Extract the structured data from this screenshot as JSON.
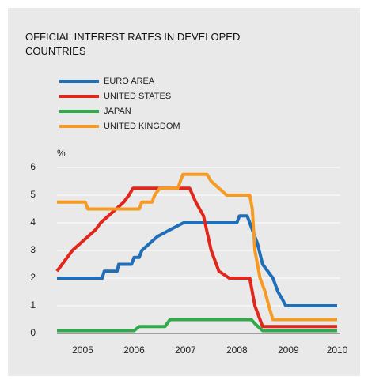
{
  "chart_data": {
    "type": "line",
    "title": "OFFICIAL INTEREST RATES IN DEVELOPED COUNTRIES",
    "y_label": "%",
    "ylim": [
      0,
      6
    ],
    "yticks": [
      0,
      1,
      2,
      3,
      4,
      5,
      6
    ],
    "grid": true,
    "xlim": [
      2005.0,
      2010.45
    ],
    "xticks": [
      {
        "value": 2005.5,
        "label": "2005"
      },
      {
        "value": 2006.5,
        "label": "2006"
      },
      {
        "value": 2007.5,
        "label": "2007"
      },
      {
        "value": 2008.5,
        "label": "2008"
      },
      {
        "value": 2009.5,
        "label": "2009"
      },
      {
        "value": 2010.45,
        "label": "2010"
      }
    ],
    "series": [
      {
        "name": "EURO AREA",
        "color": "#1f6fb8",
        "x": [
          2005.0,
          2005.88,
          2005.92,
          2006.17,
          2006.2,
          2006.45,
          2006.5,
          2006.6,
          2006.65,
          2006.8,
          2006.95,
          2007.2,
          2007.46,
          2008.5,
          2008.55,
          2008.7,
          2008.8,
          2008.9,
          2009.0,
          2009.2,
          2009.3,
          2009.38,
          2009.45,
          2010.45
        ],
        "values": [
          2,
          2,
          2.25,
          2.25,
          2.5,
          2.5,
          2.75,
          2.75,
          3,
          3.25,
          3.5,
          3.75,
          4,
          4,
          4.25,
          4.25,
          3.75,
          3.25,
          2.5,
          2,
          1.5,
          1.25,
          1,
          1
        ]
      },
      {
        "name": "UNITED STATES",
        "color": "#e1261c",
        "x": [
          2005.0,
          2005.1,
          2005.2,
          2005.3,
          2005.45,
          2005.6,
          2005.75,
          2005.85,
          2006.0,
          2006.15,
          2006.3,
          2006.4,
          2006.48,
          2007.58,
          2007.7,
          2007.85,
          2008.0,
          2008.15,
          2008.35,
          2008.75,
          2008.85,
          2009.0,
          2010.45
        ],
        "values": [
          2.25,
          2.5,
          2.75,
          3,
          3.25,
          3.5,
          3.75,
          4,
          4.25,
          4.5,
          4.75,
          5,
          5.25,
          5.25,
          4.75,
          4.25,
          3,
          2.25,
          2,
          2,
          1,
          0.25,
          0.25
        ]
      },
      {
        "name": "JAPAN",
        "color": "#2eaa4a",
        "x": [
          2005.0,
          2006.5,
          2006.6,
          2007.1,
          2007.2,
          2008.78,
          2008.88,
          2009.0,
          2010.45
        ],
        "values": [
          0.1,
          0.1,
          0.25,
          0.25,
          0.5,
          0.5,
          0.3,
          0.1,
          0.1
        ]
      },
      {
        "name": "UNITED KINGDOM",
        "color": "#f59a23",
        "x": [
          2005.0,
          2005.55,
          2005.6,
          2006.6,
          2006.65,
          2006.85,
          2006.9,
          2007.0,
          2007.35,
          2007.45,
          2007.92,
          2008.0,
          2008.15,
          2008.3,
          2008.75,
          2008.8,
          2008.85,
          2008.95,
          2009.05,
          2009.12,
          2009.2,
          2010.45
        ],
        "values": [
          4.75,
          4.75,
          4.5,
          4.5,
          4.75,
          4.75,
          5,
          5.25,
          5.25,
          5.75,
          5.75,
          5.5,
          5.25,
          5,
          5,
          4.5,
          3,
          2,
          1.5,
          1,
          0.5,
          0.5
        ]
      }
    ]
  }
}
